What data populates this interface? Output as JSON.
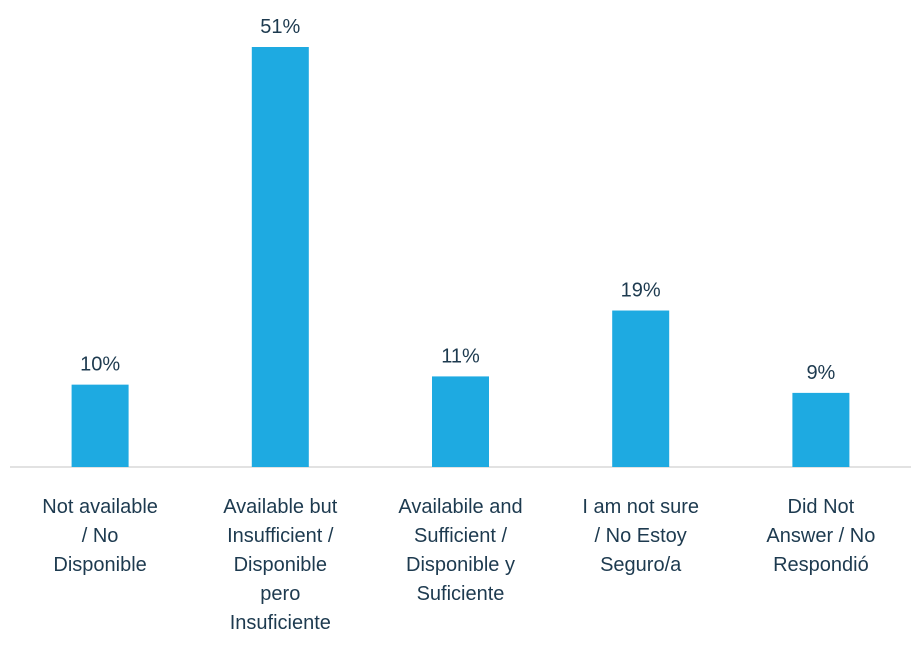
{
  "chart_data": {
    "type": "bar",
    "categories": [
      "Not available\n/  No\nDisponible",
      "Available but\nInsufficient  /\nDisponible\npero\nInsuficiente",
      "Availabile and\nSufficient  /\nDisponible y\nSuficiente",
      "I am not sure\n/  No Estoy\nSeguro/a",
      "Did Not\nAnswer  /  No\nRespondió"
    ],
    "values": [
      10,
      51,
      11,
      19,
      9
    ],
    "value_labels": [
      "10%",
      "51%",
      "11%",
      "19%",
      "9%"
    ],
    "color": "#1eaae1"
  }
}
